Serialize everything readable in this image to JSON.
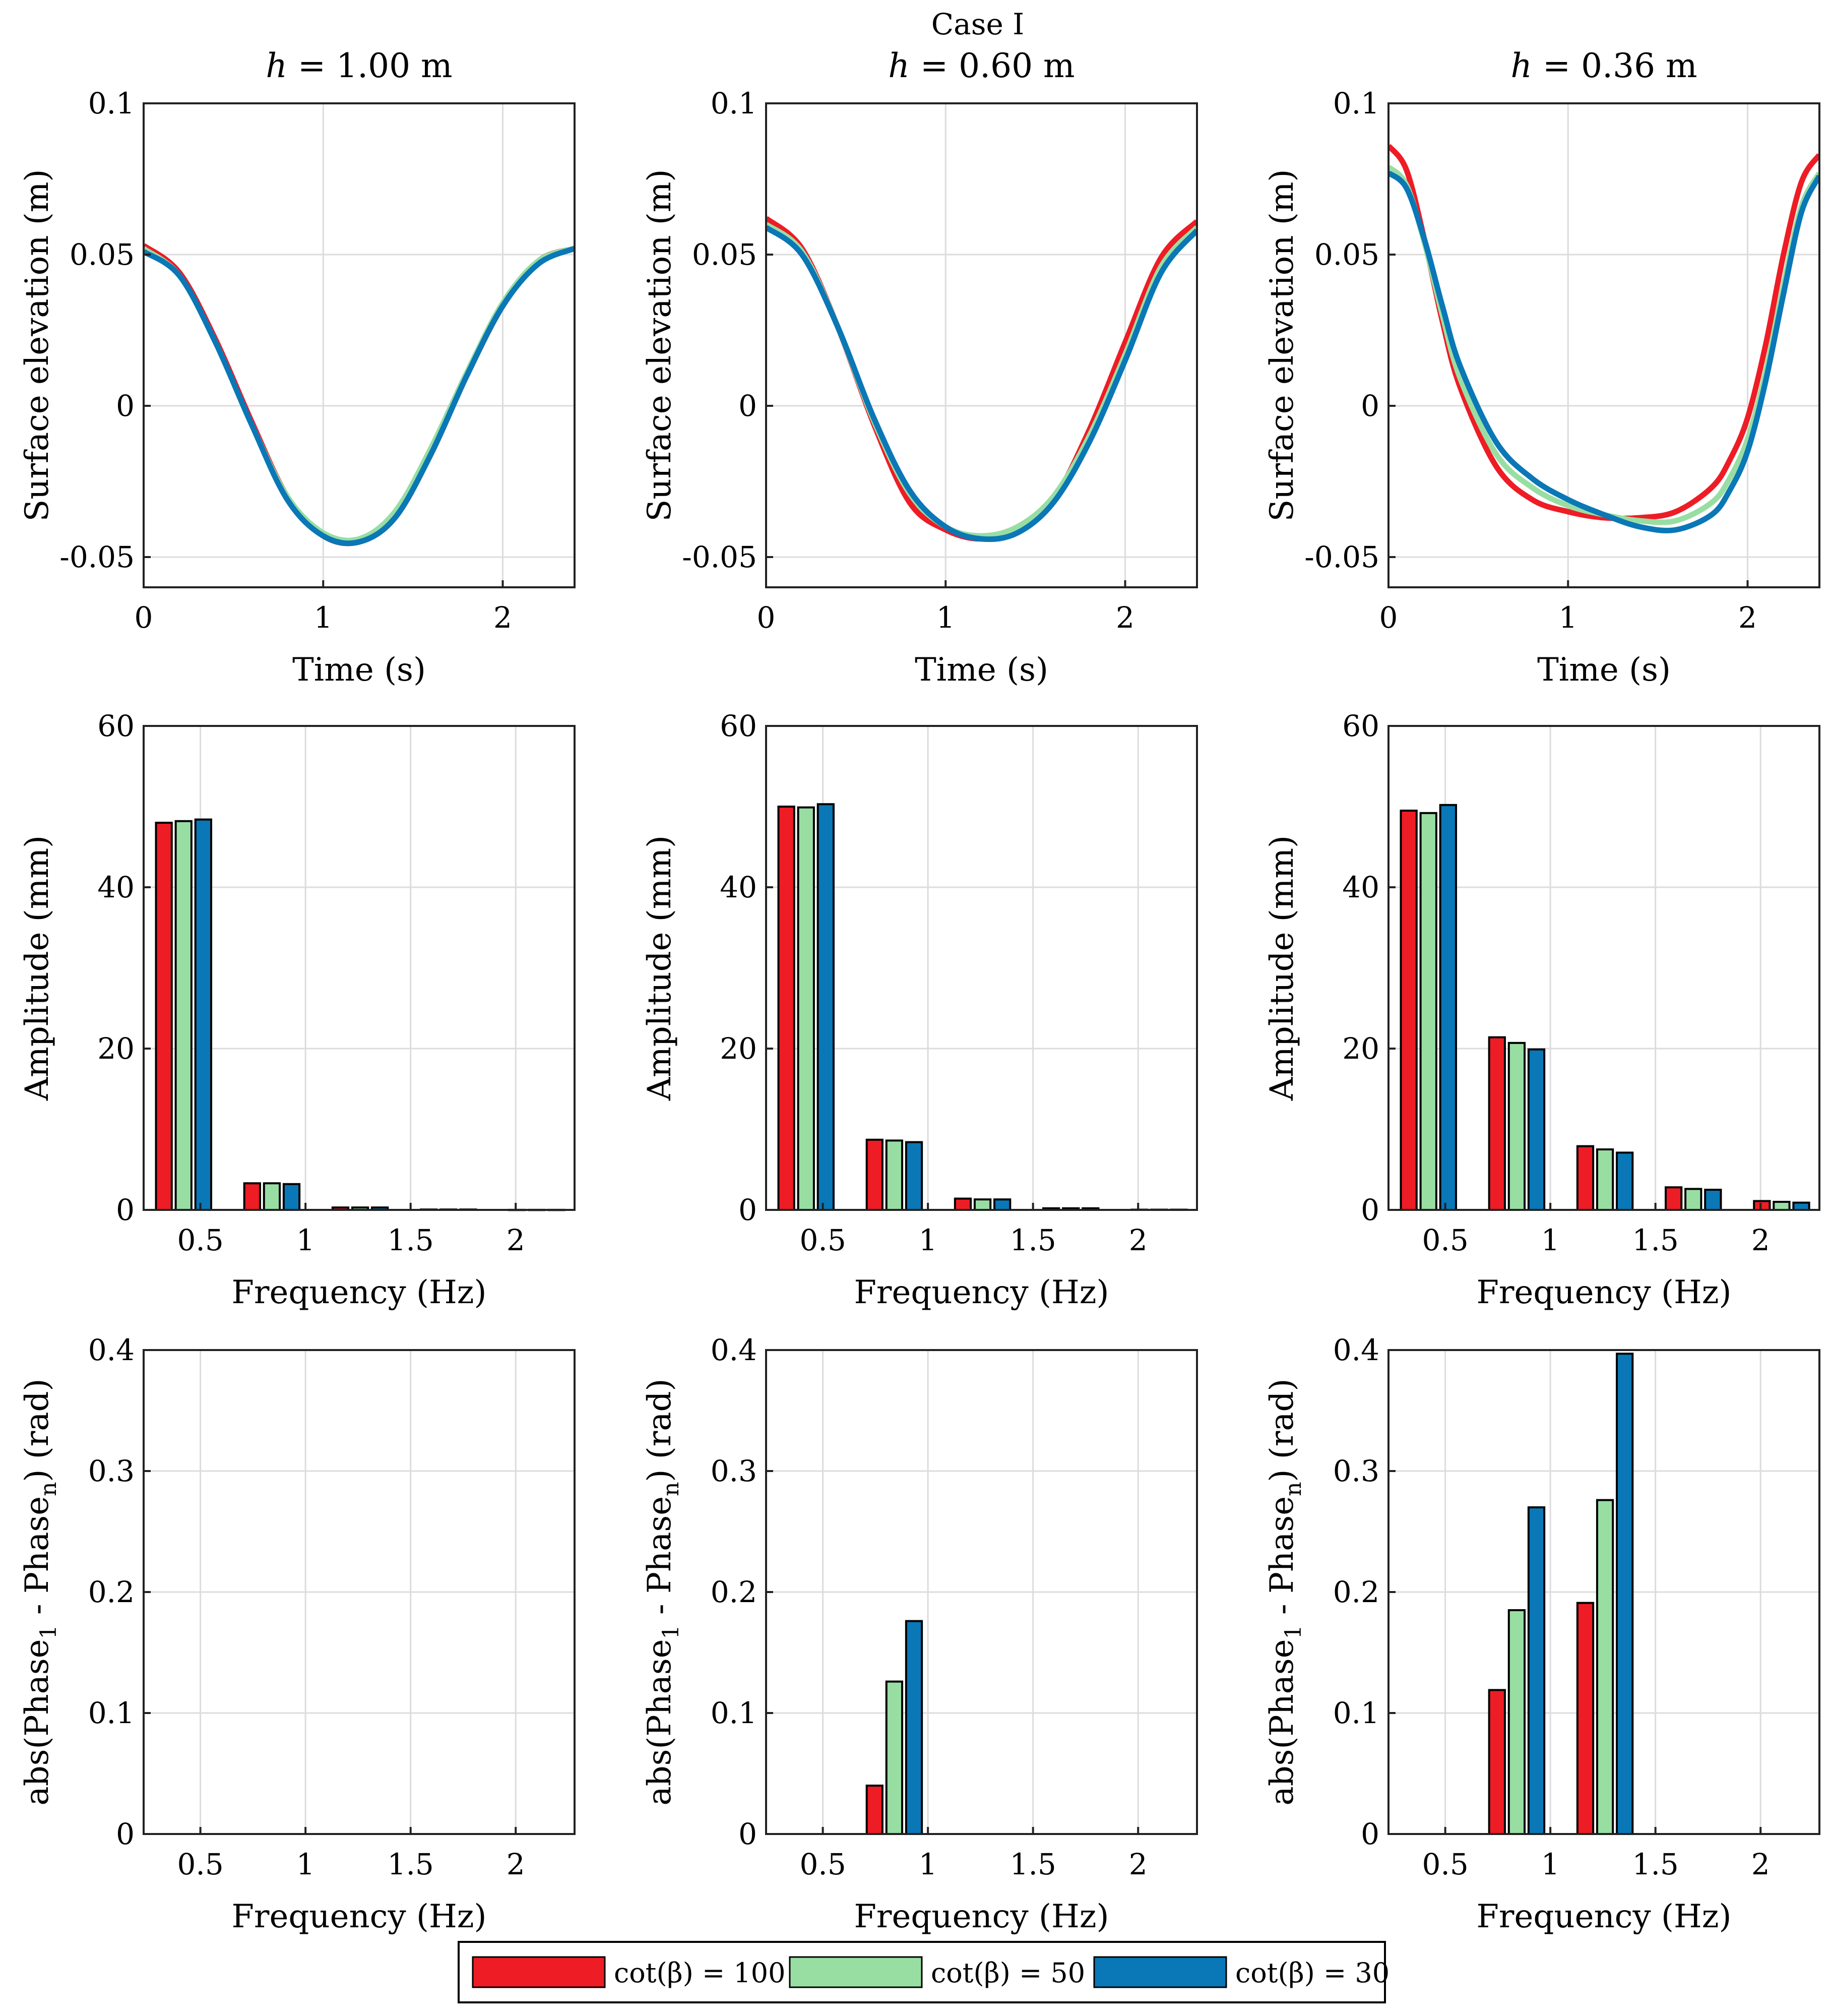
{
  "figure": {
    "suptitle": "Case I",
    "legend": [
      {
        "label": "cot(β) = 100",
        "color": "#ee1c25"
      },
      {
        "label": "cot(β) = 50",
        "color": "#98dea3"
      },
      {
        "label": "cot(β) = 30",
        "color": "#0a77b6"
      }
    ]
  },
  "chart_data": [
    {
      "id": "elev-h100",
      "type": "line",
      "title": "h = 1.00 m",
      "xlabel": "Time (s)",
      "ylabel": "Surface elevation (m)",
      "xlim": [
        0,
        2.4
      ],
      "ylim": [
        -0.06,
        0.1
      ],
      "xticks": [
        {
          "v": 0,
          "label": "0"
        },
        {
          "v": 1,
          "label": "1"
        },
        {
          "v": 2,
          "label": "2"
        }
      ],
      "yticks": [
        {
          "v": -0.05,
          "label": "-0.05"
        },
        {
          "v": 0,
          "label": "0"
        },
        {
          "v": 0.05,
          "label": "0.05"
        },
        {
          "v": 0.1,
          "label": "0.1"
        }
      ],
      "series": [
        {
          "name": "cot(β) = 100",
          "color": "#ee1c25",
          "x": [
            0,
            0.2,
            0.4,
            0.6,
            0.8,
            1.0,
            1.2,
            1.4,
            1.6,
            1.8,
            2.0,
            2.2,
            2.4
          ],
          "values": [
            0.053,
            0.044,
            0.022,
            -0.005,
            -0.03,
            -0.043,
            -0.045,
            -0.037,
            -0.016,
            0.01,
            0.033,
            0.048,
            0.052
          ]
        },
        {
          "name": "cot(β) = 50",
          "color": "#98dea3",
          "x": [
            0,
            0.2,
            0.4,
            0.6,
            0.8,
            1.0,
            1.2,
            1.4,
            1.6,
            1.8,
            2.0,
            2.2,
            2.4
          ],
          "values": [
            0.052,
            0.043,
            0.021,
            -0.006,
            -0.03,
            -0.042,
            -0.044,
            -0.035,
            -0.014,
            0.011,
            0.034,
            0.048,
            0.052
          ]
        },
        {
          "name": "cot(β) = 30",
          "color": "#0a77b6",
          "x": [
            0,
            0.2,
            0.4,
            0.6,
            0.8,
            1.0,
            1.2,
            1.4,
            1.6,
            1.8,
            2.0,
            2.2,
            2.4
          ],
          "values": [
            0.051,
            0.043,
            0.021,
            -0.006,
            -0.031,
            -0.043,
            -0.045,
            -0.037,
            -0.016,
            0.01,
            0.033,
            0.047,
            0.052
          ]
        }
      ]
    },
    {
      "id": "elev-h060",
      "type": "line",
      "title": "h = 0.60 m",
      "xlabel": "Time (s)",
      "ylabel": "Surface elevation (m)",
      "xlim": [
        0,
        2.4
      ],
      "ylim": [
        -0.06,
        0.1
      ],
      "xticks": [
        {
          "v": 0,
          "label": "0"
        },
        {
          "v": 1,
          "label": "1"
        },
        {
          "v": 2,
          "label": "2"
        }
      ],
      "yticks": [
        {
          "v": -0.05,
          "label": "-0.05"
        },
        {
          "v": 0,
          "label": "0"
        },
        {
          "v": 0.05,
          "label": "0.05"
        },
        {
          "v": 0.1,
          "label": "0.1"
        }
      ],
      "series": [
        {
          "name": "cot(β) = 100",
          "color": "#ee1c25",
          "x": [
            0,
            0.2,
            0.4,
            0.6,
            0.8,
            1.0,
            1.2,
            1.4,
            1.6,
            1.8,
            2.0,
            2.2,
            2.4
          ],
          "values": [
            0.062,
            0.052,
            0.026,
            -0.006,
            -0.032,
            -0.041,
            -0.044,
            -0.041,
            -0.031,
            -0.008,
            0.021,
            0.049,
            0.061
          ]
        },
        {
          "name": "cot(β) = 50",
          "color": "#98dea3",
          "x": [
            0,
            0.2,
            0.4,
            0.6,
            0.8,
            1.0,
            1.2,
            1.4,
            1.6,
            1.8,
            2.0,
            2.2,
            2.4
          ],
          "values": [
            0.06,
            0.051,
            0.026,
            -0.005,
            -0.029,
            -0.04,
            -0.043,
            -0.04,
            -0.03,
            -0.01,
            0.017,
            0.046,
            0.059
          ]
        },
        {
          "name": "cot(β) = 30",
          "color": "#0a77b6",
          "x": [
            0,
            0.2,
            0.4,
            0.6,
            0.8,
            1.0,
            1.2,
            1.4,
            1.6,
            1.8,
            2.0,
            2.2,
            2.4
          ],
          "values": [
            0.059,
            0.05,
            0.026,
            -0.004,
            -0.028,
            -0.04,
            -0.044,
            -0.042,
            -0.032,
            -0.012,
            0.015,
            0.044,
            0.058
          ]
        }
      ]
    },
    {
      "id": "elev-h036",
      "type": "line",
      "title": "h = 0.36 m",
      "xlabel": "Time (s)",
      "ylabel": "Surface elevation (m)",
      "xlim": [
        0,
        2.4
      ],
      "ylim": [
        -0.06,
        0.1
      ],
      "xticks": [
        {
          "v": 0,
          "label": "0"
        },
        {
          "v": 1,
          "label": "1"
        },
        {
          "v": 2,
          "label": "2"
        }
      ],
      "yticks": [
        {
          "v": -0.05,
          "label": "-0.05"
        },
        {
          "v": 0,
          "label": "0"
        },
        {
          "v": 0.05,
          "label": "0.05"
        },
        {
          "v": 0.1,
          "label": "0.1"
        }
      ],
      "series": [
        {
          "name": "cot(β) = 100",
          "color": "#ee1c25",
          "x": [
            0,
            0.1,
            0.2,
            0.3,
            0.4,
            0.6,
            0.8,
            1.0,
            1.2,
            1.4,
            1.6,
            1.8,
            1.9,
            2.0,
            2.1,
            2.2,
            2.3,
            2.4
          ],
          "values": [
            0.086,
            0.078,
            0.055,
            0.028,
            0.006,
            -0.02,
            -0.031,
            -0.035,
            -0.037,
            -0.037,
            -0.035,
            -0.027,
            -0.018,
            -0.004,
            0.02,
            0.05,
            0.074,
            0.083
          ]
        },
        {
          "name": "cot(β) = 50",
          "color": "#98dea3",
          "x": [
            0,
            0.1,
            0.2,
            0.3,
            0.4,
            0.6,
            0.8,
            1.0,
            1.2,
            1.4,
            1.6,
            1.8,
            1.9,
            2.0,
            2.1,
            2.2,
            2.3,
            2.4
          ],
          "values": [
            0.079,
            0.073,
            0.054,
            0.03,
            0.009,
            -0.016,
            -0.027,
            -0.033,
            -0.036,
            -0.038,
            -0.038,
            -0.032,
            -0.024,
            -0.011,
            0.011,
            0.04,
            0.066,
            0.077
          ]
        },
        {
          "name": "cot(β) = 30",
          "color": "#0a77b6",
          "x": [
            0,
            0.1,
            0.2,
            0.3,
            0.4,
            0.6,
            0.8,
            1.0,
            1.2,
            1.4,
            1.6,
            1.8,
            1.9,
            2.0,
            2.1,
            2.2,
            2.3,
            2.4
          ],
          "values": [
            0.077,
            0.072,
            0.055,
            0.033,
            0.013,
            -0.012,
            -0.024,
            -0.031,
            -0.036,
            -0.04,
            -0.041,
            -0.036,
            -0.028,
            -0.015,
            0.008,
            0.037,
            0.064,
            0.076
          ]
        }
      ]
    },
    {
      "id": "amp-h100",
      "type": "bar",
      "xlabel": "Frequency (Hz)",
      "ylabel": "Amplitude (mm)",
      "xlim": [
        0.23,
        2.28
      ],
      "ylim": [
        0,
        60
      ],
      "xticks": [
        {
          "v": 0.5,
          "label": "0.5"
        },
        {
          "v": 1,
          "label": "1"
        },
        {
          "v": 1.5,
          "label": "1.5"
        },
        {
          "v": 2,
          "label": "2"
        }
      ],
      "yticks": [
        {
          "v": 0,
          "label": "0"
        },
        {
          "v": 20,
          "label": "20"
        },
        {
          "v": 40,
          "label": "40"
        },
        {
          "v": 60,
          "label": "60"
        }
      ],
      "bar_width": 0.075,
      "categories": [
        0.42,
        0.84,
        1.26,
        1.68,
        2.1
      ],
      "series": [
        {
          "name": "cot(β) = 100",
          "color": "#ee1c25",
          "values": [
            48.0,
            3.3,
            0.3,
            0.05,
            0.01
          ]
        },
        {
          "name": "cot(β) = 50",
          "color": "#98dea3",
          "values": [
            48.2,
            3.3,
            0.3,
            0.05,
            0.01
          ]
        },
        {
          "name": "cot(β) = 30",
          "color": "#0a77b6",
          "values": [
            48.4,
            3.2,
            0.3,
            0.05,
            0.01
          ]
        }
      ]
    },
    {
      "id": "amp-h060",
      "type": "bar",
      "xlabel": "Frequency (Hz)",
      "ylabel": "Amplitude (mm)",
      "xlim": [
        0.23,
        2.28
      ],
      "ylim": [
        0,
        60
      ],
      "xticks": [
        {
          "v": 0.5,
          "label": "0.5"
        },
        {
          "v": 1,
          "label": "1"
        },
        {
          "v": 1.5,
          "label": "1.5"
        },
        {
          "v": 2,
          "label": "2"
        }
      ],
      "yticks": [
        {
          "v": 0,
          "label": "0"
        },
        {
          "v": 20,
          "label": "20"
        },
        {
          "v": 40,
          "label": "40"
        },
        {
          "v": 60,
          "label": "60"
        }
      ],
      "bar_width": 0.075,
      "categories": [
        0.42,
        0.84,
        1.26,
        1.68,
        2.1
      ],
      "series": [
        {
          "name": "cot(β) = 100",
          "color": "#ee1c25",
          "values": [
            50.0,
            8.7,
            1.4,
            0.2,
            0.03
          ]
        },
        {
          "name": "cot(β) = 50",
          "color": "#98dea3",
          "values": [
            49.9,
            8.6,
            1.3,
            0.2,
            0.03
          ]
        },
        {
          "name": "cot(β) = 30",
          "color": "#0a77b6",
          "values": [
            50.3,
            8.4,
            1.3,
            0.2,
            0.03
          ]
        }
      ]
    },
    {
      "id": "amp-h036",
      "type": "bar",
      "xlabel": "Frequency (Hz)",
      "ylabel": "Amplitude (mm)",
      "xlim": [
        0.23,
        2.28
      ],
      "ylim": [
        0,
        60
      ],
      "xticks": [
        {
          "v": 0.5,
          "label": "0.5"
        },
        {
          "v": 1,
          "label": "1"
        },
        {
          "v": 1.5,
          "label": "1.5"
        },
        {
          "v": 2,
          "label": "2"
        }
      ],
      "yticks": [
        {
          "v": 0,
          "label": "0"
        },
        {
          "v": 20,
          "label": "20"
        },
        {
          "v": 40,
          "label": "40"
        },
        {
          "v": 60,
          "label": "60"
        }
      ],
      "bar_width": 0.075,
      "categories": [
        0.42,
        0.84,
        1.26,
        1.68,
        2.1
      ],
      "series": [
        {
          "name": "cot(β) = 100",
          "color": "#ee1c25",
          "values": [
            49.5,
            21.4,
            7.9,
            2.8,
            1.1
          ]
        },
        {
          "name": "cot(β) = 50",
          "color": "#98dea3",
          "values": [
            49.2,
            20.7,
            7.5,
            2.6,
            1.0
          ]
        },
        {
          "name": "cot(β) = 30",
          "color": "#0a77b6",
          "values": [
            50.2,
            19.9,
            7.1,
            2.5,
            0.9
          ]
        }
      ]
    },
    {
      "id": "phase-h100",
      "type": "bar",
      "xlabel": "Frequency (Hz)",
      "ylabel": "abs(Phase1 - Phasen) (rad)",
      "ylabel_parts": {
        "pre": "abs(Phase",
        "sub1": "1",
        "mid": " - Phase",
        "sub2": "n",
        "post": ") (rad)"
      },
      "xlim": [
        0.23,
        2.28
      ],
      "ylim": [
        0,
        0.4
      ],
      "xticks": [
        {
          "v": 0.5,
          "label": "0.5"
        },
        {
          "v": 1,
          "label": "1"
        },
        {
          "v": 1.5,
          "label": "1.5"
        },
        {
          "v": 2,
          "label": "2"
        }
      ],
      "yticks": [
        {
          "v": 0,
          "label": "0"
        },
        {
          "v": 0.1,
          "label": "0.1"
        },
        {
          "v": 0.2,
          "label": "0.2"
        },
        {
          "v": 0.3,
          "label": "0.3"
        },
        {
          "v": 0.4,
          "label": "0.4"
        }
      ],
      "bar_width": 0.075,
      "categories": [
        0.42,
        0.84,
        1.26,
        1.68,
        2.1
      ],
      "series": [
        {
          "name": "cot(β) = 100",
          "color": "#ee1c25",
          "values": [
            0,
            0,
            0,
            0,
            0
          ]
        },
        {
          "name": "cot(β) = 50",
          "color": "#98dea3",
          "values": [
            0,
            0,
            0,
            0,
            0
          ]
        },
        {
          "name": "cot(β) = 30",
          "color": "#0a77b6",
          "values": [
            0,
            0,
            0,
            0,
            0
          ]
        }
      ]
    },
    {
      "id": "phase-h060",
      "type": "bar",
      "xlabel": "Frequency (Hz)",
      "ylabel": "abs(Phase1 - Phasen) (rad)",
      "ylabel_parts": {
        "pre": "abs(Phase",
        "sub1": "1",
        "mid": " - Phase",
        "sub2": "n",
        "post": ") (rad)"
      },
      "xlim": [
        0.23,
        2.28
      ],
      "ylim": [
        0,
        0.4
      ],
      "xticks": [
        {
          "v": 0.5,
          "label": "0.5"
        },
        {
          "v": 1,
          "label": "1"
        },
        {
          "v": 1.5,
          "label": "1.5"
        },
        {
          "v": 2,
          "label": "2"
        }
      ],
      "yticks": [
        {
          "v": 0,
          "label": "0"
        },
        {
          "v": 0.1,
          "label": "0.1"
        },
        {
          "v": 0.2,
          "label": "0.2"
        },
        {
          "v": 0.3,
          "label": "0.3"
        },
        {
          "v": 0.4,
          "label": "0.4"
        }
      ],
      "bar_width": 0.075,
      "categories": [
        0.42,
        0.84,
        1.26,
        1.68,
        2.1
      ],
      "series": [
        {
          "name": "cot(β) = 100",
          "color": "#ee1c25",
          "values": [
            0,
            0.04,
            0,
            0,
            0
          ]
        },
        {
          "name": "cot(β) = 50",
          "color": "#98dea3",
          "values": [
            0,
            0.126,
            0,
            0,
            0
          ]
        },
        {
          "name": "cot(β) = 30",
          "color": "#0a77b6",
          "values": [
            0,
            0.176,
            0,
            0,
            0
          ]
        }
      ]
    },
    {
      "id": "phase-h036",
      "type": "bar",
      "xlabel": "Frequency (Hz)",
      "ylabel": "abs(Phase1 - Phasen) (rad)",
      "ylabel_parts": {
        "pre": "abs(Phase",
        "sub1": "1",
        "mid": " - Phase",
        "sub2": "n",
        "post": ") (rad)"
      },
      "xlim": [
        0.23,
        2.28
      ],
      "ylim": [
        0,
        0.4
      ],
      "xticks": [
        {
          "v": 0.5,
          "label": "0.5"
        },
        {
          "v": 1,
          "label": "1"
        },
        {
          "v": 1.5,
          "label": "1.5"
        },
        {
          "v": 2,
          "label": "2"
        }
      ],
      "yticks": [
        {
          "v": 0,
          "label": "0"
        },
        {
          "v": 0.1,
          "label": "0.1"
        },
        {
          "v": 0.2,
          "label": "0.2"
        },
        {
          "v": 0.3,
          "label": "0.3"
        },
        {
          "v": 0.4,
          "label": "0.4"
        }
      ],
      "bar_width": 0.075,
      "categories": [
        0.42,
        0.84,
        1.26,
        1.68,
        2.1
      ],
      "series": [
        {
          "name": "cot(β) = 100",
          "color": "#ee1c25",
          "values": [
            0,
            0.119,
            0.191,
            0,
            0
          ]
        },
        {
          "name": "cot(β) = 50",
          "color": "#98dea3",
          "values": [
            0,
            0.185,
            0.276,
            0,
            0
          ]
        },
        {
          "name": "cot(β) = 30",
          "color": "#0a77b6",
          "values": [
            0,
            0.27,
            0.397,
            0,
            0
          ]
        }
      ]
    }
  ]
}
